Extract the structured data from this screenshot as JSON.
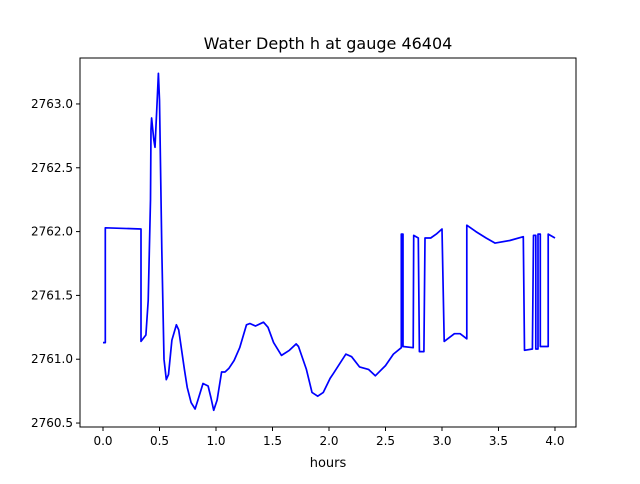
{
  "chart_data": {
    "type": "line",
    "title": "Water Depth h at gauge 46404",
    "xlabel": "hours",
    "ylabel": "",
    "xlim": [
      -0.2035,
      4.186
    ],
    "ylim": [
      2760.469,
      2763.36
    ],
    "grid": false,
    "xticks": [
      0.0,
      0.5,
      1.0,
      1.5,
      2.0,
      2.5,
      3.0,
      3.5,
      4.0
    ],
    "xtick_labels": [
      "0.0",
      "0.5",
      "1.0",
      "1.5",
      "2.0",
      "2.5",
      "3.0",
      "3.5",
      "4.0"
    ],
    "yticks": [
      2760.5,
      2761.0,
      2761.5,
      2762.0,
      2762.5,
      2763.0
    ],
    "ytick_labels": [
      "2760.5",
      "2761.0",
      "2761.5",
      "2762.0",
      "2762.5",
      "2763.0"
    ],
    "series": [
      {
        "name": "h",
        "color": "#0000ff",
        "x": [
          0.0,
          0.02,
          0.02,
          0.336,
          0.336,
          0.38,
          0.4,
          0.42,
          0.425,
          0.43,
          0.45,
          0.46,
          0.48,
          0.49,
          0.5,
          0.52,
          0.54,
          0.56,
          0.58,
          0.61,
          0.65,
          0.67,
          0.72,
          0.745,
          0.78,
          0.815,
          0.84,
          0.885,
          0.93,
          0.955,
          0.98,
          1.01,
          1.05,
          1.08,
          1.115,
          1.16,
          1.21,
          1.27,
          1.3,
          1.35,
          1.42,
          1.46,
          1.51,
          1.58,
          1.65,
          1.71,
          1.73,
          1.8,
          1.85,
          1.9,
          1.95,
          2.01,
          2.04,
          2.15,
          2.2,
          2.27,
          2.35,
          2.41,
          2.5,
          2.57,
          2.64,
          2.64,
          2.655,
          2.655,
          2.745,
          2.75,
          2.79,
          2.8,
          2.84,
          2.85,
          2.9,
          2.95,
          3.0,
          3.02,
          3.11,
          3.16,
          3.22,
          3.22,
          3.3,
          3.39,
          3.47,
          3.6,
          3.72,
          3.73,
          3.8,
          3.81,
          3.83,
          3.83,
          3.85,
          3.85,
          3.87,
          3.87,
          3.94,
          3.94,
          4.0
        ],
        "y": [
          2761.13,
          2761.13,
          2762.03,
          2762.02,
          2761.14,
          2761.19,
          2761.46,
          2762.25,
          2762.8,
          2762.89,
          2762.72,
          2762.66,
          2763.03,
          2763.24,
          2763.03,
          2761.86,
          2761.0,
          2760.84,
          2760.88,
          2761.15,
          2761.27,
          2761.23,
          2760.92,
          2760.78,
          2760.66,
          2760.61,
          2760.68,
          2760.81,
          2760.79,
          2760.7,
          2760.6,
          2760.68,
          2760.9,
          2760.9,
          2760.93,
          2760.99,
          2761.09,
          2761.27,
          2761.28,
          2761.26,
          2761.29,
          2761.25,
          2761.13,
          2761.03,
          2761.07,
          2761.12,
          2761.1,
          2760.92,
          2760.74,
          2760.71,
          2760.74,
          2760.85,
          2760.89,
          2761.04,
          2761.02,
          2760.94,
          2760.92,
          2760.87,
          2760.95,
          2761.04,
          2761.09,
          2761.98,
          2761.98,
          2761.1,
          2761.09,
          2761.97,
          2761.95,
          2761.06,
          2761.06,
          2761.95,
          2761.95,
          2761.98,
          2762.02,
          2761.14,
          2761.2,
          2761.2,
          2761.16,
          2762.05,
          2762.0,
          2761.95,
          2761.91,
          2761.93,
          2761.96,
          2761.07,
          2761.08,
          2761.97,
          2761.97,
          2761.08,
          2761.08,
          2761.98,
          2761.98,
          2761.1,
          2761.1,
          2761.98,
          2761.95
        ]
      }
    ]
  }
}
